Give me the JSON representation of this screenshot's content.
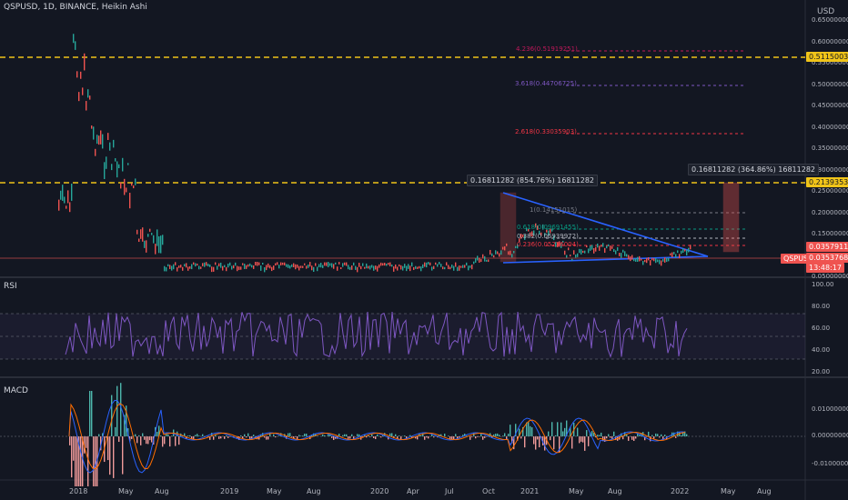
{
  "header": {
    "symbol_line": "QSPUSD, 1D, BINANCE, Heikin Ashi"
  },
  "price_axis": {
    "currency": "USD",
    "ticks": [
      "0.65000000",
      "0.60000000",
      "0.55000000",
      "0.50000000",
      "0.45000000",
      "0.40000000",
      "0.35000000",
      "0.30000000",
      "0.25000000",
      "0.20000000",
      "0.15000000",
      "0.10000000",
      "0.05000000"
    ]
  },
  "price_tags": {
    "level_top": "0.51150039",
    "level_mid": "0.21393533",
    "symbol": "QSPUSD",
    "last_price": "0.03579110",
    "close_price": "0.03537685",
    "countdown": "13:48:17"
  },
  "fib_labels": [
    {
      "text": "4.236(0.51919251)",
      "color": "#c2185b"
    },
    {
      "text": "3.618(0.44706725)",
      "color": "#7e57c2"
    },
    {
      "text": "2.618(0.33035903)",
      "color": "#f23645"
    },
    {
      "text": "1(0.14151015)",
      "color": "#787b86"
    },
    {
      "text": "0.618(0.09691455)",
      "color": "#089981"
    },
    {
      "text": "0.382(0.06939972)",
      "color": "#b2b5be"
    },
    {
      "text": "0.236(0.05236004)",
      "color": "#f23645"
    }
  ],
  "measure_labels": {
    "left": "0.16811282 (854.76%) 16811282",
    "right": "0.16811282 (364.86%) 16811282"
  },
  "rsi": {
    "title": "RSI",
    "ticks": [
      "100.00",
      "80.00",
      "60.00",
      "40.00",
      "20.00"
    ]
  },
  "macd": {
    "title": "MACD",
    "ticks": [
      "0.01000000",
      "0.00000000",
      "-0.01000000"
    ]
  },
  "time_axis": {
    "labels": [
      "2018",
      "May",
      "Aug",
      "2019",
      "May",
      "Aug",
      "2020",
      "Apr",
      "Jul",
      "Oct",
      "2021",
      "May",
      "Aug",
      "2022",
      "May",
      "Aug"
    ]
  },
  "colors": {
    "background": "#131722",
    "up": "#26a69a",
    "down": "#ef5350",
    "rsi_line": "#7e57c2",
    "level_line": "#f0c419",
    "triangle": "#2962ff"
  }
}
